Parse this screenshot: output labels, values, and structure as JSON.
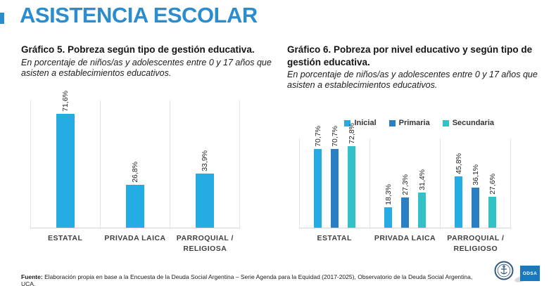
{
  "slide": {
    "title": "ASISTENCIA ESCOLAR",
    "accent_color": "#2B8DCE",
    "footer": {
      "source_label": "Fuente:",
      "source_text": " Elaboración propia en base a la Encuesta de la Deuda Social Argentina – Serie Agenda para la Equidad (2017-2025), Observatorio de la Deuda Social Argentina, UCA.",
      "odsa_logo_text": "ODSA"
    }
  },
  "chart_data": [
    {
      "type": "bar",
      "title": "Gráfico 5. Pobreza según tipo de gestión educativa.",
      "subtitle": "En porcentaje de niños/as y adolescentes entre 0 y 17 años que asisten a establecimientos educativos.",
      "categories": [
        "ESTATAL",
        "PRIVADA LAICA",
        "PARROQUIAL / RELIGIOSA"
      ],
      "values": [
        71.6,
        26.8,
        33.9
      ],
      "value_labels": [
        "71,6%",
        "26,8%",
        "33,9%"
      ],
      "bar_color": "#25ACE3",
      "ylim": [
        0,
        80
      ],
      "grid": "vertical-category-separators",
      "legend": false,
      "xlabel": "",
      "ylabel": ""
    },
    {
      "type": "bar",
      "title": "Gráfico 6. Pobreza por nivel educativo y según tipo de gestión educativa.",
      "subtitle": "En porcentaje de niños/as y adolescentes entre 0 y 17 años que asisten a establecimientos educativos.",
      "categories": [
        "ESTATAL",
        "PRIVADA LAICA",
        "PARROQUIAL / RELIGIOSO"
      ],
      "series": [
        {
          "name": "Inicial",
          "color": "#25ACE3",
          "values": [
            70.7,
            18.3,
            45.8
          ],
          "value_labels": [
            "70,7%",
            "18,3%",
            "45,8%"
          ]
        },
        {
          "name": "Primaria",
          "color": "#2A7FC3",
          "values": [
            70.7,
            27.3,
            36.1
          ],
          "value_labels": [
            "70,7%",
            "27,3%",
            "36,1%"
          ]
        },
        {
          "name": "Secundaria",
          "color": "#31C1C6",
          "values": [
            72.8,
            31.4,
            27.6
          ],
          "value_labels": [
            "72,8%",
            "31,4%",
            "27,6%"
          ]
        }
      ],
      "ylim": [
        0,
        80
      ],
      "grid": "vertical-category-separators",
      "legend_position": "top-right",
      "xlabel": "",
      "ylabel": ""
    }
  ]
}
